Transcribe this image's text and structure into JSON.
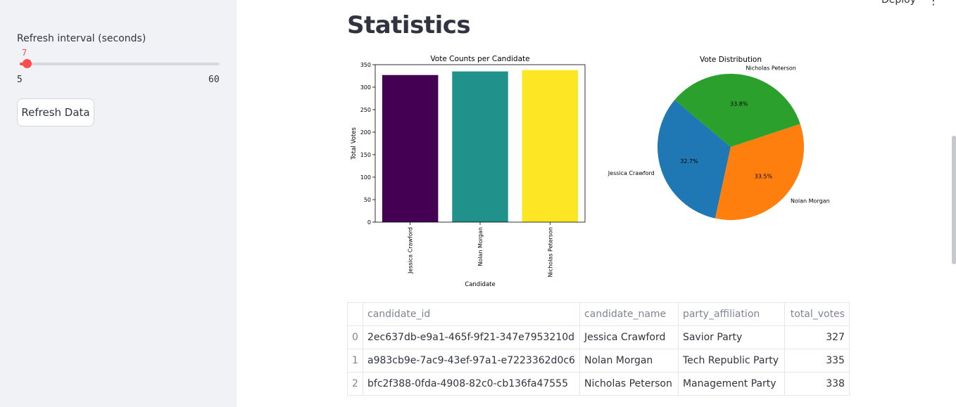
{
  "sidebar": {
    "slider": {
      "label": "Refresh interval (seconds)",
      "value": 7,
      "min": 5,
      "max": 60,
      "min_label": "5",
      "max_label": "60",
      "value_label": "7"
    },
    "refresh_button_label": "Refresh Data"
  },
  "header": {
    "deploy_label": "Deploy",
    "menu_icon": "more-vertical-icon"
  },
  "main": {
    "title": "Statistics"
  },
  "chart_data": [
    {
      "type": "bar",
      "title": "Vote Counts per Candidate",
      "xlabel": "Candidate",
      "ylabel": "Total Votes",
      "categories": [
        "Jessica Crawford",
        "Nolan Morgan",
        "Nicholas Peterson"
      ],
      "values": [
        327,
        335,
        338
      ],
      "colors": [
        "#440154",
        "#21918c",
        "#fde725"
      ],
      "ylim": [
        0,
        350
      ],
      "yticks": [
        0,
        50,
        100,
        150,
        200,
        250,
        300,
        350
      ]
    },
    {
      "type": "pie",
      "title": "Vote Distribution",
      "labels": [
        "Jessica Crawford",
        "Nolan Morgan",
        "Nicholas Peterson"
      ],
      "values": [
        327,
        335,
        338
      ],
      "percent_labels": [
        "32.7%",
        "33.5%",
        "33.8%"
      ],
      "colors": [
        "#1f77b4",
        "#ff7f0e",
        "#2ca02c"
      ],
      "start_angle": 140
    }
  ],
  "table": {
    "columns": [
      "",
      "candidate_id",
      "candidate_name",
      "party_affiliation",
      "total_votes"
    ],
    "rows": [
      {
        "index": "0",
        "candidate_id": "2ec637db-e9a1-465f-9f21-347e7953210d",
        "candidate_name": "Jessica Crawford",
        "party_affiliation": "Savior Party",
        "total_votes": "327"
      },
      {
        "index": "1",
        "candidate_id": "a983cb9e-7ac9-43ef-97a1-e7223362d0c6",
        "candidate_name": "Nolan Morgan",
        "party_affiliation": "Tech Republic Party",
        "total_votes": "335"
      },
      {
        "index": "2",
        "candidate_id": "bfc2f388-0fda-4908-82c0-cb136fa47555",
        "candidate_name": "Nicholas Peterson",
        "party_affiliation": "Management Party",
        "total_votes": "338"
      }
    ]
  }
}
